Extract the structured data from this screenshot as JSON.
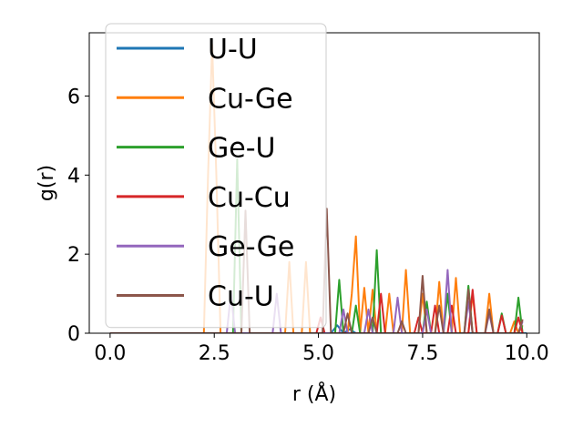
{
  "chart_data": {
    "type": "line",
    "xlabel": "r (Å)",
    "ylabel": "g(r)",
    "xlim": [
      -0.5,
      10.3
    ],
    "ylim": [
      0,
      7.6
    ],
    "xticks": [
      0.0,
      2.5,
      5.0,
      7.5,
      10.0
    ],
    "xtick_labels": [
      "0.0",
      "2.5",
      "5.0",
      "7.5",
      "10.0"
    ],
    "yticks": [
      0,
      2,
      4,
      6
    ],
    "ytick_labels": [
      "0",
      "2",
      "4",
      "6"
    ],
    "grid": false,
    "legend_position": "upper-left",
    "series": [
      {
        "name": "U-U",
        "color": "#1f77b4",
        "x": [
          0,
          5.0,
          5.3,
          5.45,
          5.6,
          5.75,
          5.9,
          10.0
        ],
        "y": [
          0,
          0,
          0,
          0.2,
          0,
          0.1,
          0,
          0
        ]
      },
      {
        "name": "Cu-Ge",
        "color": "#ff7f0e",
        "x": [
          0,
          2.25,
          2.35,
          2.45,
          2.55,
          2.65,
          4.2,
          4.3,
          4.4,
          4.6,
          4.7,
          4.8,
          5.7,
          5.8,
          5.9,
          6.0,
          6.1,
          6.2,
          6.3,
          6.4,
          6.6,
          6.7,
          6.8,
          7.0,
          7.1,
          7.2,
          7.4,
          7.5,
          7.6,
          7.8,
          7.9,
          8.0,
          8.2,
          8.3,
          8.4,
          8.6,
          8.7,
          8.8,
          9.0,
          9.1,
          9.2,
          9.6,
          9.7,
          9.8,
          9.9
        ],
        "y": [
          0,
          0,
          4.0,
          7.3,
          4.0,
          0,
          0,
          1.8,
          0,
          0,
          1.8,
          0,
          0,
          1.0,
          2.45,
          0,
          1.15,
          0,
          1.1,
          0,
          0,
          1.0,
          0,
          0,
          1.6,
          0,
          0,
          1.0,
          0,
          0,
          1.3,
          0,
          0,
          1.4,
          0,
          0,
          1.0,
          0,
          0,
          1.0,
          0,
          0,
          0.3,
          0,
          0.2
        ]
      },
      {
        "name": "Ge-U",
        "color": "#2ca02c",
        "x": [
          0,
          2.95,
          3.05,
          3.15,
          5.4,
          5.5,
          5.6,
          5.8,
          5.9,
          6.0,
          6.3,
          6.4,
          6.5,
          7.5,
          7.6,
          7.7,
          8.0,
          8.1,
          8.2,
          8.5,
          8.6,
          8.7,
          9.3,
          9.4,
          9.5,
          9.7,
          9.8,
          9.9
        ],
        "y": [
          0,
          0,
          4.4,
          0,
          0,
          1.35,
          0,
          0,
          0.7,
          0,
          0,
          2.1,
          0,
          0,
          0.8,
          0,
          0,
          1.0,
          0,
          0,
          1.2,
          0,
          0,
          0.5,
          0,
          0,
          0.9,
          0
        ]
      },
      {
        "name": "Cu-Cu",
        "color": "#d62728",
        "x": [
          0,
          4.95,
          5.05,
          5.15,
          6.4,
          6.5,
          6.6,
          7.3,
          7.4,
          7.5,
          7.7,
          7.8,
          7.9,
          8.1,
          8.2,
          8.3,
          8.6,
          8.7,
          8.8,
          9.3,
          9.4,
          9.5,
          9.7,
          9.8,
          9.9
        ],
        "y": [
          0,
          0,
          0.4,
          0,
          0,
          1.0,
          0,
          0,
          0.4,
          0,
          0,
          0.7,
          0,
          0,
          0.7,
          0,
          0,
          1.1,
          0,
          0,
          0.45,
          0,
          0,
          0.4,
          0
        ]
      },
      {
        "name": "Ge-Ge",
        "color": "#9467bd",
        "x": [
          0,
          2.8,
          2.9,
          3.0,
          3.9,
          4.0,
          4.1,
          5.5,
          5.6,
          5.7,
          6.1,
          6.2,
          6.3,
          6.8,
          6.9,
          7.0,
          7.5,
          7.6,
          7.7,
          8.0,
          8.1,
          8.2,
          8.3,
          8.5,
          8.6,
          8.7,
          9.0,
          9.1,
          9.2,
          9.8,
          9.9
        ],
        "y": [
          0,
          0,
          1.0,
          0,
          0,
          1.0,
          0,
          0,
          0.6,
          0,
          0,
          0.6,
          0,
          0,
          0.9,
          0,
          0,
          0.6,
          0,
          0,
          1.6,
          0,
          0,
          0,
          0.8,
          0,
          0,
          0.5,
          0,
          0,
          0.3
        ]
      },
      {
        "name": "Cu-U",
        "color": "#8c564b",
        "x": [
          0,
          3.15,
          3.25,
          3.35,
          5.1,
          5.2,
          5.3,
          5.6,
          5.7,
          5.8,
          6.2,
          6.3,
          6.4,
          6.9,
          7.0,
          7.1,
          7.4,
          7.5,
          7.6,
          7.8,
          7.9,
          8.0,
          8.5,
          8.6,
          8.7,
          9.0,
          9.1,
          9.2,
          9.8,
          9.9
        ],
        "y": [
          0,
          0,
          3.1,
          0,
          0,
          3.15,
          0,
          0,
          0.5,
          0,
          0,
          0.4,
          0,
          0,
          0.3,
          0,
          0,
          1.45,
          0,
          0,
          0.7,
          0,
          0,
          1.1,
          0,
          0,
          0.6,
          0,
          0,
          0.35
        ]
      }
    ]
  }
}
